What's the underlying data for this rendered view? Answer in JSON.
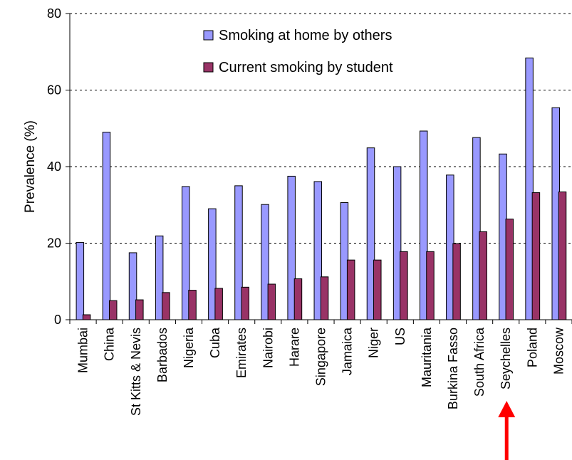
{
  "chart_data": {
    "type": "bar",
    "categories": [
      "Mumbai",
      "China",
      "St Kitts & Nevis",
      "Barbados",
      "Nigeria",
      "Cuba",
      "Emirates",
      "Nairobi",
      "Harare",
      "Singapore",
      "Jamaica",
      "Niger",
      "US",
      "Mauritania",
      "Burkina Fasso",
      "South Africa",
      "Seychelles",
      "Poland",
      "Moscow"
    ],
    "series": [
      {
        "name": "Smoking at home by others",
        "color": "#9999ff",
        "values": [
          20.2,
          49.0,
          17.5,
          21.9,
          34.8,
          29.0,
          35.0,
          30.1,
          37.5,
          36.1,
          30.6,
          44.9,
          40.0,
          49.3,
          37.8,
          47.6,
          43.3,
          68.4,
          55.4
        ]
      },
      {
        "name": "Current smoking by student",
        "color": "#993366",
        "values": [
          1.3,
          5.0,
          5.2,
          7.1,
          7.7,
          8.2,
          8.5,
          9.3,
          10.7,
          11.2,
          15.6,
          15.6,
          17.8,
          17.8,
          19.9,
          23.0,
          26.3,
          33.2,
          33.4
        ]
      }
    ],
    "xlabel": "",
    "ylabel": "Prevalence (%)",
    "ylim": [
      0,
      80
    ],
    "yticks": [
      0,
      20,
      40,
      60,
      80
    ],
    "grid": true,
    "legend": "top-center",
    "highlight_category": "Seychelles",
    "highlight_color": "#ff0000"
  }
}
